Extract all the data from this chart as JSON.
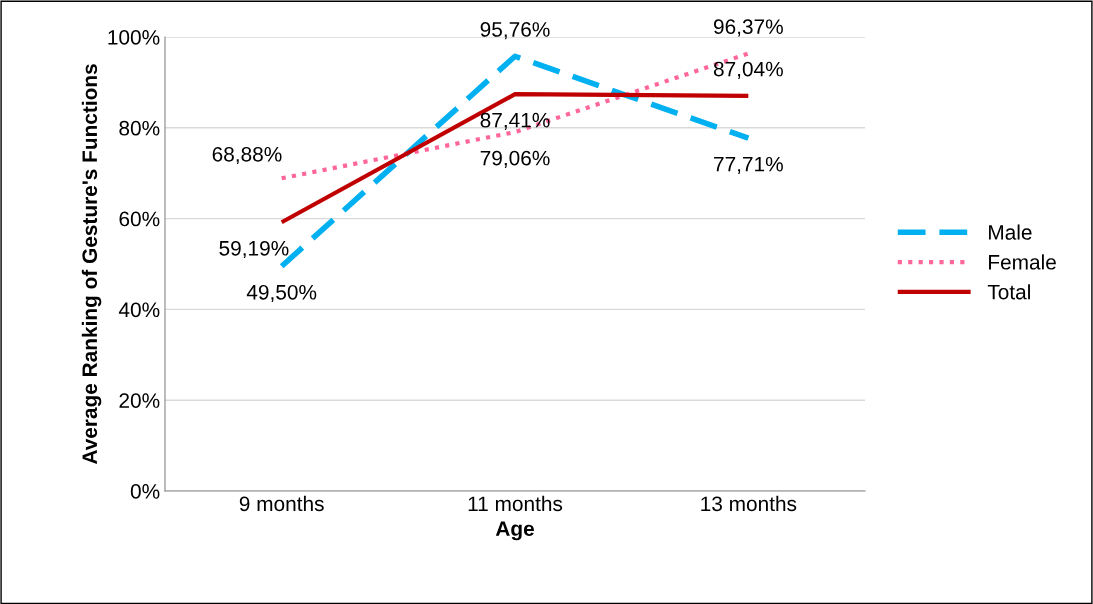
{
  "chart_data": {
    "type": "line",
    "xlabel": "Age",
    "ylabel": "Average Ranking of Gesture's Functions",
    "categories": [
      "9 months",
      "11 months",
      "13 months"
    ],
    "series": [
      {
        "name": "Male",
        "color": "#00b0f0",
        "line_style": "dashed",
        "values": [
          49.5,
          95.76,
          77.71
        ],
        "value_labels": [
          "49,50%",
          "95,76%",
          "77,71%"
        ]
      },
      {
        "name": "Female",
        "color": "#ff6699",
        "line_style": "dotted",
        "values": [
          68.88,
          79.06,
          96.37
        ],
        "value_labels": [
          "68,88%",
          "79,06%",
          "96,37%"
        ]
      },
      {
        "name": "Total",
        "color": "#c00000",
        "line_style": "solid",
        "values": [
          59.19,
          87.41,
          87.04
        ],
        "value_labels": [
          "59,19%",
          "87,41%",
          "87,04%"
        ]
      }
    ],
    "ylim": [
      0,
      100
    ],
    "yticks": [
      {
        "value": 0,
        "label": "0%"
      },
      {
        "value": 20,
        "label": "20%"
      },
      {
        "value": 40,
        "label": "40%"
      },
      {
        "value": 60,
        "label": "60%"
      },
      {
        "value": 80,
        "label": "80%"
      },
      {
        "value": 100,
        "label": "100%"
      }
    ],
    "grid": "y",
    "legend": "right",
    "marker": "none"
  }
}
